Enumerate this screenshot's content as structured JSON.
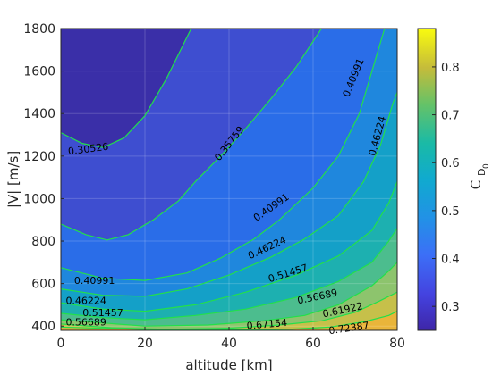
{
  "chart_data": {
    "type": "contourf",
    "xlabel": "altitude [km]",
    "ylabel": "|V| [m/s]",
    "colorbar_label": "C",
    "colorbar_label_sub1": "D",
    "colorbar_label_sub2": "0",
    "xlim": [
      0,
      80
    ],
    "ylim": [
      380,
      1800
    ],
    "x_ticks": [
      0,
      20,
      40,
      60,
      80
    ],
    "y_ticks": [
      400,
      600,
      800,
      1000,
      1200,
      1400,
      1600,
      1800
    ],
    "colorbar_range": [
      0.25,
      0.88
    ],
    "colorbar_ticks": [
      0.3,
      0.4,
      0.5,
      0.6,
      0.7,
      0.8
    ],
    "colormap": "parula",
    "line_color": "#22e04a",
    "levels": [
      {
        "value": 0.30526,
        "label": "0.30526",
        "points": [
          [
            0,
            1310
          ],
          [
            5,
            1260
          ],
          [
            10,
            1240
          ],
          [
            15,
            1285
          ],
          [
            20,
            1390
          ],
          [
            25,
            1560
          ],
          [
            28,
            1680
          ],
          [
            31,
            1800
          ]
        ],
        "label_at": [
          6.5,
          1235
        ],
        "label_angle": -7
      },
      {
        "value": 0.35759,
        "label": "0.35759",
        "points": [
          [
            0,
            880
          ],
          [
            6,
            830
          ],
          [
            11,
            805
          ],
          [
            16,
            830
          ],
          [
            22,
            900
          ],
          [
            28,
            990
          ],
          [
            32,
            1080
          ],
          [
            38,
            1200
          ],
          [
            44,
            1330
          ],
          [
            50,
            1470
          ],
          [
            56,
            1620
          ],
          [
            62,
            1800
          ]
        ],
        "label_at": [
          40,
          1260
        ],
        "label_angle": -52
      },
      {
        "value": 0.40991,
        "label": "0.40991",
        "points": [
          [
            0,
            675
          ],
          [
            10,
            625
          ],
          [
            20,
            615
          ],
          [
            30,
            650
          ],
          [
            38,
            720
          ],
          [
            46,
            810
          ],
          [
            52,
            900
          ],
          [
            60,
            1050
          ],
          [
            66,
            1200
          ],
          [
            71,
            1400
          ],
          [
            74,
            1600
          ],
          [
            77,
            1800
          ]
        ],
        "label_at": [
          8,
          615
        ],
        "label_angle": 0,
        "labels_extra": [
          {
            "label_at": [
              50,
              960
            ],
            "label_angle": -35
          },
          {
            "label_at": [
              69.5,
              1570
            ],
            "label_angle": -68
          }
        ]
      },
      {
        "value": 0.46224,
        "label": "0.46224",
        "points": [
          [
            0,
            575
          ],
          [
            10,
            545
          ],
          [
            20,
            540
          ],
          [
            30,
            575
          ],
          [
            40,
            640
          ],
          [
            50,
            725
          ],
          [
            58,
            810
          ],
          [
            66,
            920
          ],
          [
            72,
            1080
          ],
          [
            76,
            1250
          ],
          [
            79,
            1450
          ],
          [
            80,
            1500
          ]
        ],
        "label_at": [
          6,
          520
        ],
        "label_angle": 0,
        "labels_extra": [
          {
            "label_at": [
              49,
              770
            ],
            "label_angle": -25
          },
          {
            "label_at": [
              75.2,
              1295
            ],
            "label_angle": -75
          }
        ]
      },
      {
        "value": 0.51457,
        "label": "0.51457",
        "points": [
          [
            0,
            510
          ],
          [
            10,
            480
          ],
          [
            20,
            470
          ],
          [
            32,
            500
          ],
          [
            44,
            560
          ],
          [
            56,
            640
          ],
          [
            66,
            730
          ],
          [
            74,
            850
          ],
          [
            78,
            980
          ],
          [
            80,
            1080
          ]
        ],
        "label_at": [
          10,
          465
        ],
        "label_angle": 0,
        "labels_extra": [
          {
            "label_at": [
              54,
              650
            ],
            "label_angle": -17
          }
        ]
      },
      {
        "value": 0.56689,
        "label": "0.56689",
        "points": [
          [
            0,
            460
          ],
          [
            10,
            440
          ],
          [
            20,
            430
          ],
          [
            32,
            450
          ],
          [
            44,
            480
          ],
          [
            56,
            535
          ],
          [
            66,
            610
          ],
          [
            74,
            700
          ],
          [
            78,
            800
          ],
          [
            80,
            860
          ]
        ],
        "label_at": [
          6,
          420
        ],
        "label_angle": 0,
        "labels_extra": [
          {
            "label_at": [
              61,
              540
            ],
            "label_angle": -12
          }
        ]
      },
      {
        "value": 0.61922,
        "label": "0.61922",
        "points": [
          [
            0,
            430
          ],
          [
            10,
            415
          ],
          [
            20,
            400
          ],
          [
            35,
            405
          ],
          [
            48,
            425
          ],
          [
            58,
            450
          ],
          [
            66,
            500
          ],
          [
            74,
            590
          ],
          [
            78,
            660
          ],
          [
            80,
            700
          ]
        ],
        "label_at": [
          67,
          477
        ],
        "label_angle": -12
      },
      {
        "value": 0.67154,
        "label": "0.67154",
        "points": [
          [
            0,
            410
          ],
          [
            12,
            392
          ],
          [
            25,
            385
          ],
          [
            40,
            390
          ],
          [
            52,
            405
          ],
          [
            62,
            425
          ],
          [
            70,
            465
          ],
          [
            76,
            520
          ],
          [
            80,
            560
          ]
        ],
        "label_at": [
          49,
          410
        ],
        "label_angle": -5
      },
      {
        "value": 0.72387,
        "label": "0.72387",
        "points": [
          [
            0,
            395
          ],
          [
            20,
            384
          ],
          [
            40,
            382
          ],
          [
            55,
            386
          ],
          [
            64,
            395
          ],
          [
            72,
            420
          ],
          [
            78,
            450
          ],
          [
            80,
            470
          ]
        ],
        "label_at": [
          68.5,
          392
        ],
        "label_angle": -8
      }
    ],
    "region_colors": [
      "#3a2fa8",
      "#3e4ed0",
      "#2a6de8",
      "#1f87dd",
      "#14a0c8",
      "#1db0b0",
      "#4cbd8e",
      "#8dc46d",
      "#c6c04a",
      "#e9b53a"
    ]
  }
}
